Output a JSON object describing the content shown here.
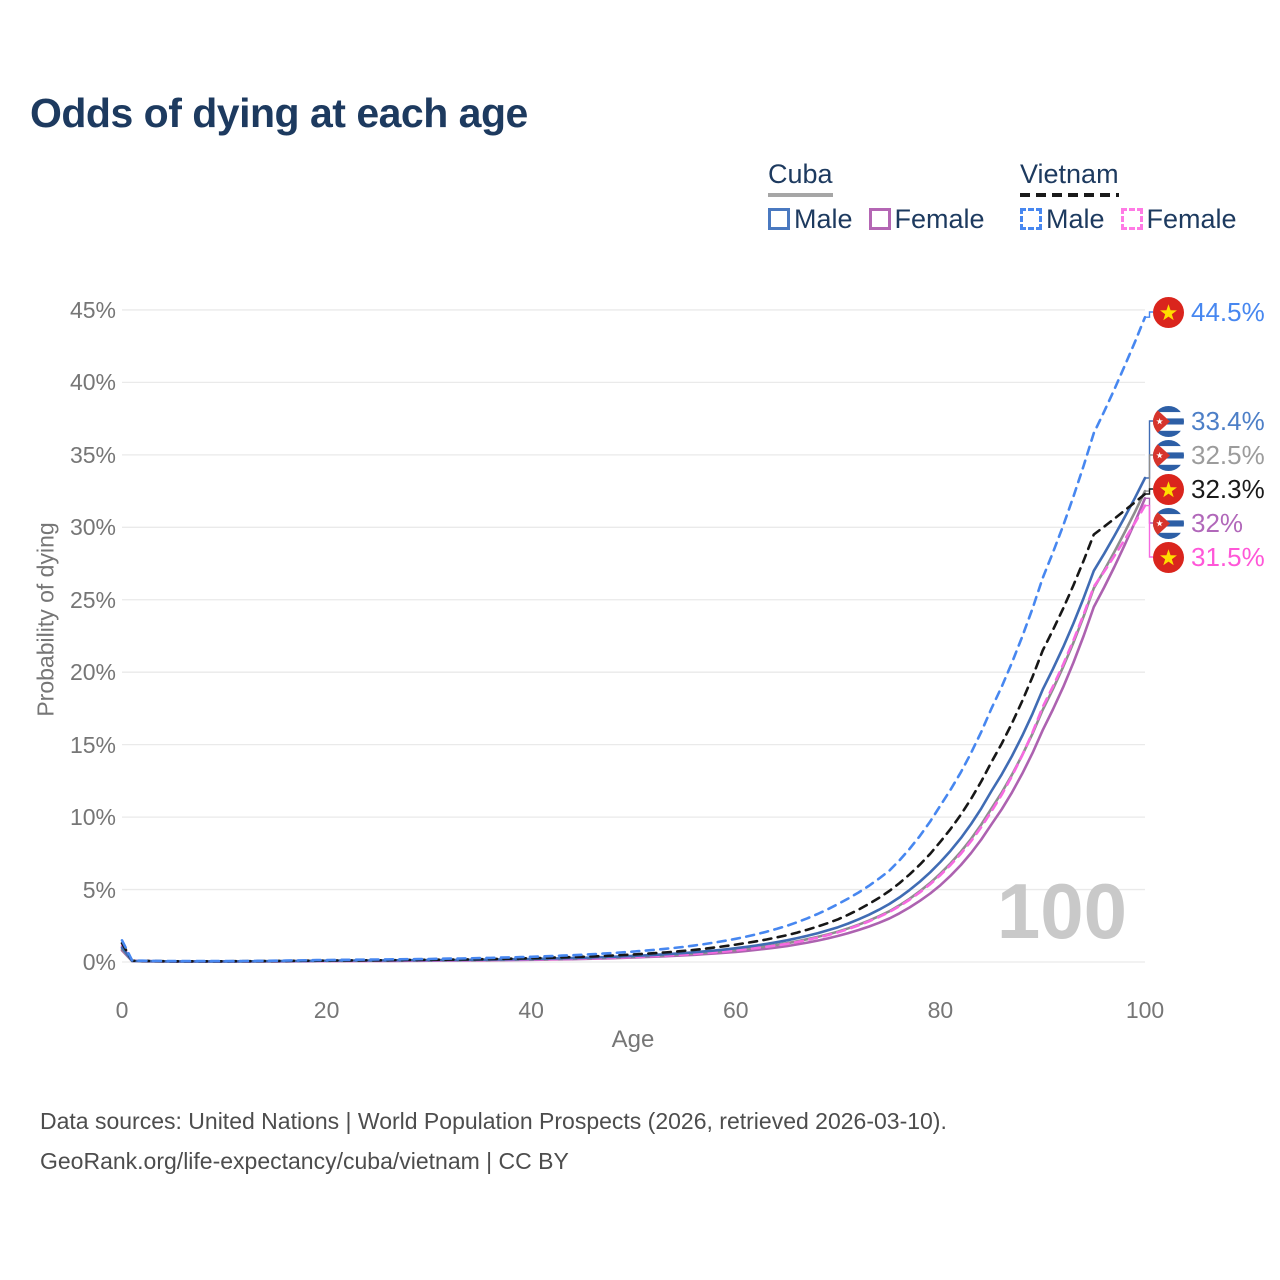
{
  "title": "Odds of dying at each age",
  "legend": {
    "groups": [
      {
        "name": "Cuba",
        "line_style": "solid",
        "items": [
          {
            "label": "Male",
            "color": "#4a79c0"
          },
          {
            "label": "Female",
            "color": "#b466b4"
          }
        ]
      },
      {
        "name": "Vietnam",
        "line_style": "dashed",
        "items": [
          {
            "label": "Male",
            "color": "#4787f0"
          },
          {
            "label": "Female",
            "color": "#ff7ae5"
          }
        ]
      }
    ]
  },
  "watermark": "100",
  "footer": {
    "line1": "Data sources: United Nations | World Population Prospects (2026, retrieved 2026-03-10).",
    "line2": "GeoRank.org/life-expectancy/cuba/vietnam | CC BY"
  },
  "chart_data": {
    "type": "line",
    "title": "Odds of dying at each age",
    "xlabel": "Age",
    "ylabel": "Probability of dying",
    "x_ticks": [
      0,
      20,
      40,
      60,
      80,
      100
    ],
    "y_ticks": [
      "0%",
      "5%",
      "10%",
      "15%",
      "20%",
      "25%",
      "30%",
      "35%",
      "40%",
      "45%"
    ],
    "xlim": [
      0,
      100
    ],
    "ylim_percent": [
      0,
      45
    ],
    "grid": true,
    "legend_position": "top-right",
    "series": [
      {
        "id": "cuba_female",
        "name": "Cuba Female",
        "country": "Cuba",
        "sex": "Female",
        "color": "#ad62b0",
        "dashed": false,
        "flag": "cuba",
        "end_label": "32%",
        "label_color": "#b168ba",
        "end_value_percent": 32.0,
        "points": [
          [
            0,
            0.8
          ],
          [
            1,
            0.06
          ],
          [
            5,
            0.03
          ],
          [
            10,
            0.03
          ],
          [
            15,
            0.04
          ],
          [
            20,
            0.06
          ],
          [
            25,
            0.07
          ],
          [
            30,
            0.09
          ],
          [
            35,
            0.11
          ],
          [
            40,
            0.15
          ],
          [
            45,
            0.21
          ],
          [
            50,
            0.31
          ],
          [
            55,
            0.46
          ],
          [
            60,
            0.7
          ],
          [
            65,
            1.1
          ],
          [
            70,
            1.8
          ],
          [
            75,
            3.0
          ],
          [
            80,
            5.3
          ],
          [
            85,
            9.5
          ],
          [
            90,
            16.0
          ],
          [
            95,
            24.5
          ],
          [
            100,
            32.0
          ]
        ]
      },
      {
        "id": "cuba_total",
        "name": "Cuba Both sexes",
        "country": "Cuba",
        "sex": "Both",
        "color": "#8e8e8e",
        "dashed": false,
        "flag": "cuba",
        "end_label": "32.5%",
        "label_color": "#9c9c9c",
        "end_value_percent": 32.5,
        "points": [
          [
            0,
            0.9
          ],
          [
            1,
            0.065
          ],
          [
            5,
            0.035
          ],
          [
            10,
            0.035
          ],
          [
            15,
            0.05
          ],
          [
            20,
            0.075
          ],
          [
            25,
            0.09
          ],
          [
            30,
            0.11
          ],
          [
            35,
            0.13
          ],
          [
            40,
            0.18
          ],
          [
            45,
            0.25
          ],
          [
            50,
            0.36
          ],
          [
            55,
            0.54
          ],
          [
            60,
            0.82
          ],
          [
            65,
            1.3
          ],
          [
            70,
            2.1
          ],
          [
            75,
            3.5
          ],
          [
            80,
            6.1
          ],
          [
            85,
            10.6
          ],
          [
            90,
            17.4
          ],
          [
            95,
            25.8
          ],
          [
            100,
            32.5
          ]
        ]
      },
      {
        "id": "vietnam_female",
        "name": "Vietnam Female",
        "country": "Vietnam",
        "sex": "Female",
        "color": "#f66ae0",
        "dashed": true,
        "flag": "vietnam",
        "end_label": "31.5%",
        "label_color": "#ff57d8",
        "end_value_percent": 31.5,
        "points": [
          [
            0,
            1.1
          ],
          [
            1,
            0.08
          ],
          [
            5,
            0.04
          ],
          [
            10,
            0.04
          ],
          [
            15,
            0.05
          ],
          [
            20,
            0.07
          ],
          [
            25,
            0.08
          ],
          [
            30,
            0.1
          ],
          [
            35,
            0.13
          ],
          [
            40,
            0.17
          ],
          [
            45,
            0.24
          ],
          [
            50,
            0.35
          ],
          [
            55,
            0.52
          ],
          [
            60,
            0.8
          ],
          [
            65,
            1.25
          ],
          [
            70,
            2.05
          ],
          [
            75,
            3.45
          ],
          [
            80,
            6.0
          ],
          [
            85,
            10.4
          ],
          [
            90,
            17.6
          ],
          [
            95,
            25.9
          ],
          [
            100,
            31.5
          ]
        ]
      },
      {
        "id": "cuba_male",
        "name": "Cuba Male",
        "country": "Cuba",
        "sex": "Male",
        "color": "#406cb4",
        "dashed": false,
        "flag": "cuba",
        "end_label": "33.4%",
        "label_color": "#4d7fc7",
        "end_value_percent": 33.4,
        "points": [
          [
            0,
            1.0
          ],
          [
            1,
            0.07
          ],
          [
            5,
            0.04
          ],
          [
            10,
            0.04
          ],
          [
            15,
            0.06
          ],
          [
            20,
            0.09
          ],
          [
            25,
            0.11
          ],
          [
            30,
            0.13
          ],
          [
            35,
            0.16
          ],
          [
            40,
            0.21
          ],
          [
            45,
            0.29
          ],
          [
            50,
            0.42
          ],
          [
            55,
            0.62
          ],
          [
            60,
            0.95
          ],
          [
            65,
            1.5
          ],
          [
            70,
            2.4
          ],
          [
            75,
            4.0
          ],
          [
            80,
            6.9
          ],
          [
            85,
            11.8
          ],
          [
            90,
            18.8
          ],
          [
            95,
            27.0
          ],
          [
            100,
            33.4
          ]
        ]
      },
      {
        "id": "vietnam_total",
        "name": "Vietnam Both sexes",
        "country": "Vietnam",
        "sex": "Both",
        "color": "#171717",
        "dashed": true,
        "flag": "vietnam",
        "end_label": "32.3%",
        "label_color": "#1a1a1a",
        "end_value_percent": 32.3,
        "points": [
          [
            0,
            1.3
          ],
          [
            1,
            0.09
          ],
          [
            5,
            0.05
          ],
          [
            10,
            0.05
          ],
          [
            15,
            0.07
          ],
          [
            20,
            0.1
          ],
          [
            25,
            0.12
          ],
          [
            30,
            0.15
          ],
          [
            35,
            0.19
          ],
          [
            40,
            0.26
          ],
          [
            45,
            0.36
          ],
          [
            50,
            0.52
          ],
          [
            55,
            0.77
          ],
          [
            60,
            1.2
          ],
          [
            65,
            1.85
          ],
          [
            70,
            2.95
          ],
          [
            75,
            4.9
          ],
          [
            80,
            8.3
          ],
          [
            85,
            13.8
          ],
          [
            90,
            21.5
          ],
          [
            95,
            29.5
          ],
          [
            100,
            32.3
          ]
        ]
      },
      {
        "id": "vietnam_male",
        "name": "Vietnam Male",
        "country": "Vietnam",
        "sex": "Male",
        "color": "#4787f0",
        "dashed": true,
        "flag": "vietnam",
        "end_label": "44.5%",
        "label_color": "#4787f0",
        "end_value_percent": 44.5,
        "points": [
          [
            0,
            1.5
          ],
          [
            1,
            0.1
          ],
          [
            5,
            0.06
          ],
          [
            10,
            0.06
          ],
          [
            15,
            0.09
          ],
          [
            20,
            0.14
          ],
          [
            25,
            0.17
          ],
          [
            30,
            0.21
          ],
          [
            35,
            0.27
          ],
          [
            40,
            0.36
          ],
          [
            45,
            0.5
          ],
          [
            50,
            0.72
          ],
          [
            55,
            1.05
          ],
          [
            60,
            1.6
          ],
          [
            65,
            2.5
          ],
          [
            70,
            4.0
          ],
          [
            75,
            6.3
          ],
          [
            80,
            10.8
          ],
          [
            85,
            17.5
          ],
          [
            90,
            26.5
          ],
          [
            95,
            36.5
          ],
          [
            100,
            44.5
          ]
        ]
      }
    ],
    "flag_colors": {
      "vietnam_red": "#da251d",
      "vietnam_star": "#ffde00",
      "cuba_blue": "#2d5fa6",
      "cuba_white": "#ffffff",
      "cuba_triangle": "#d6342c",
      "cuba_star": "#ffffff"
    }
  },
  "colors": {
    "title_text": "#1d3a5f",
    "axis_text": "#767676",
    "gridline": "#eaeaea",
    "watermark": "#c9c9c9",
    "footer_text": "#4d4d4d"
  }
}
